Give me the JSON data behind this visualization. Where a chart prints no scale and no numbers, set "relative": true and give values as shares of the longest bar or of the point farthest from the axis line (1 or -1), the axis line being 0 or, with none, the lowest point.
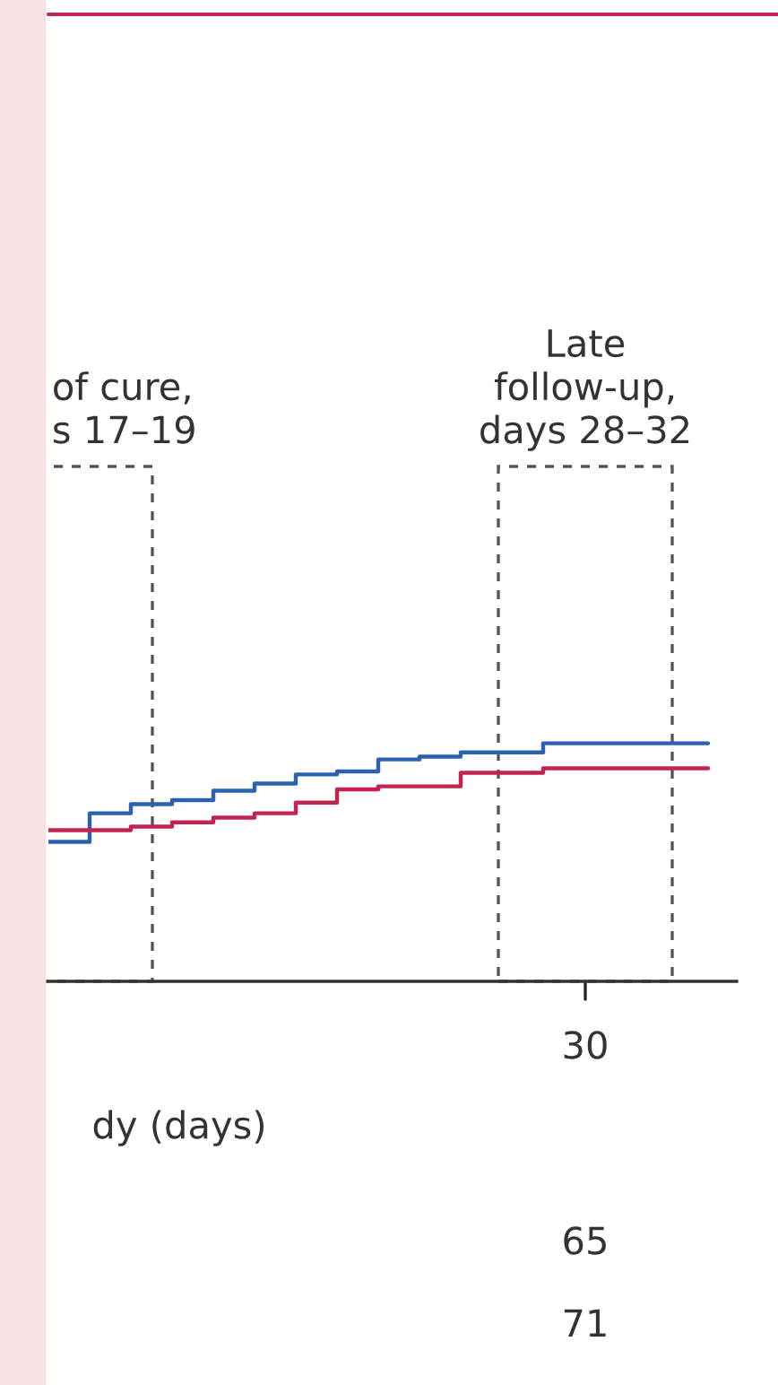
{
  "chart_data": {
    "type": "step",
    "relative": true,
    "xlabel": "dy (days)",
    "legend": false,
    "categories": [
      null,
      null,
      null,
      null,
      null,
      null,
      null,
      null,
      null,
      null,
      null,
      null,
      null,
      null,
      null,
      null,
      null
    ],
    "series": [
      {
        "color": "#2a62ad",
        "values": [
          0.586,
          0.706,
          0.744,
          0.761,
          0.801,
          0.831,
          0.869,
          0.882,
          0.932,
          0.944,
          0.962,
          0.962,
          1.0,
          1.0,
          1.0,
          1.0,
          1.0
        ]
      },
      {
        "color": "#c3234f",
        "values": [
          0.635,
          0.635,
          0.65,
          0.668,
          0.688,
          0.706,
          0.751,
          0.806,
          0.819,
          0.819,
          0.876,
          0.876,
          0.895,
          0.895,
          0.895,
          0.895,
          0.895
        ]
      }
    ],
    "annotations": [
      "of cure,\ns 17–19",
      "Late\nfollow-up,\ndays 28–32",
      "30",
      "65",
      "71"
    ]
  }
}
